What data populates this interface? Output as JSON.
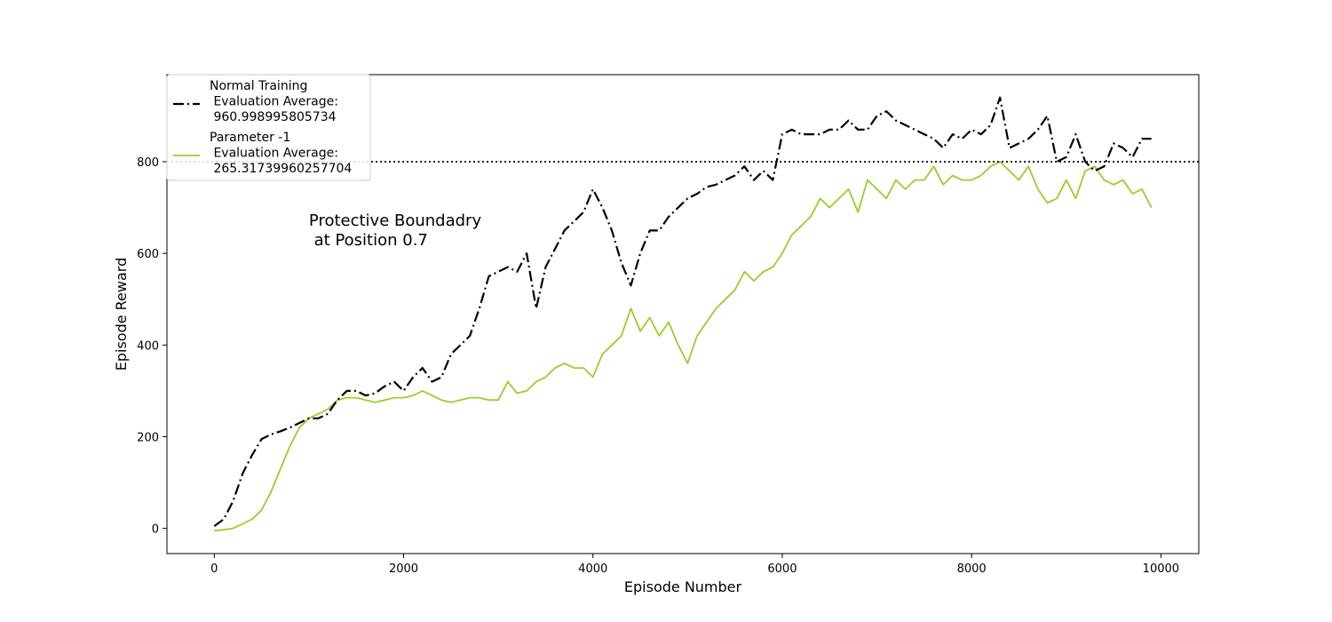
{
  "chart_data": {
    "type": "line",
    "xlabel": "Episode Number",
    "ylabel": "Episode Reward",
    "xlim": [
      -500,
      10400
    ],
    "ylim": [
      -55,
      990
    ],
    "xticks": [
      0,
      2000,
      4000,
      6000,
      8000,
      10000
    ],
    "yticks": [
      0,
      200,
      400,
      600,
      800
    ],
    "grid": false,
    "legend_position": "top-left",
    "reference_line": {
      "y": 800,
      "style": "dotted",
      "color": "#000000"
    },
    "annotation": {
      "lines": [
        "Protective Boundadry",
        " at Position 0.7"
      ],
      "x": 1000,
      "y": 660
    },
    "series": [
      {
        "name": "Normal Training\n Evaluation Average:\n 960.998995805734",
        "legend_lines": [
          "Normal Training",
          " Evaluation Average:",
          " 960.998995805734"
        ],
        "color": "#000000",
        "style": "dashdot",
        "x": [
          0,
          100,
          200,
          300,
          400,
          500,
          600,
          700,
          800,
          900,
          1000,
          1100,
          1200,
          1300,
          1400,
          1500,
          1600,
          1700,
          1800,
          1900,
          2000,
          2100,
          2200,
          2300,
          2400,
          2500,
          2600,
          2700,
          2800,
          2900,
          3000,
          3100,
          3200,
          3300,
          3400,
          3500,
          3600,
          3700,
          3800,
          3900,
          4000,
          4100,
          4200,
          4300,
          4400,
          4500,
          4600,
          4700,
          4800,
          4900,
          5000,
          5100,
          5200,
          5300,
          5400,
          5500,
          5600,
          5700,
          5800,
          5900,
          6000,
          6100,
          6200,
          6300,
          6400,
          6500,
          6600,
          6700,
          6800,
          6900,
          7000,
          7100,
          7200,
          7300,
          7400,
          7500,
          7600,
          7700,
          7800,
          7900,
          8000,
          8100,
          8200,
          8300,
          8400,
          8500,
          8600,
          8700,
          8800,
          8900,
          9000,
          9100,
          9200,
          9300,
          9400,
          9500,
          9600,
          9700,
          9800,
          9900
        ],
        "y": [
          5,
          20,
          60,
          120,
          160,
          195,
          205,
          212,
          220,
          230,
          240,
          240,
          250,
          280,
          300,
          300,
          290,
          295,
          310,
          320,
          300,
          330,
          350,
          320,
          330,
          380,
          400,
          420,
          480,
          550,
          560,
          570,
          560,
          600,
          480,
          570,
          610,
          650,
          670,
          690,
          740,
          700,
          650,
          580,
          530,
          600,
          650,
          650,
          680,
          700,
          720,
          730,
          745,
          750,
          760,
          770,
          790,
          760,
          780,
          760,
          860,
          870,
          860,
          860,
          860,
          870,
          870,
          890,
          870,
          870,
          900,
          910,
          890,
          880,
          870,
          860,
          850,
          830,
          860,
          850,
          870,
          860,
          880,
          940,
          830,
          840,
          850,
          870,
          900,
          800,
          810,
          860,
          800,
          780,
          790,
          840,
          830,
          810,
          850,
          850
        ]
      },
      {
        "name": "Parameter -1\n Evaluation Average:\n 265.31739960257704",
        "legend_lines": [
          "Parameter -1",
          " Evaluation Average:",
          " 265.31739960257704"
        ],
        "color": "#9acd32",
        "style": "solid",
        "x": [
          0,
          100,
          200,
          300,
          400,
          500,
          600,
          700,
          800,
          900,
          1000,
          1100,
          1200,
          1300,
          1400,
          1500,
          1600,
          1700,
          1800,
          1900,
          2000,
          2100,
          2200,
          2300,
          2400,
          2500,
          2600,
          2700,
          2800,
          2900,
          3000,
          3100,
          3200,
          3300,
          3400,
          3500,
          3600,
          3700,
          3800,
          3900,
          4000,
          4100,
          4200,
          4300,
          4400,
          4500,
          4600,
          4700,
          4800,
          4900,
          5000,
          5100,
          5200,
          5300,
          5400,
          5500,
          5600,
          5700,
          5800,
          5900,
          6000,
          6100,
          6200,
          6300,
          6400,
          6500,
          6600,
          6700,
          6800,
          6900,
          7000,
          7100,
          7200,
          7300,
          7400,
          7500,
          7600,
          7700,
          7800,
          7900,
          8000,
          8100,
          8200,
          8300,
          8400,
          8500,
          8600,
          8700,
          8800,
          8900,
          9000,
          9100,
          9200,
          9300,
          9400,
          9500,
          9600,
          9700,
          9800,
          9900
        ],
        "y": [
          -5,
          -3,
          0,
          10,
          20,
          40,
          80,
          130,
          180,
          220,
          240,
          250,
          260,
          280,
          285,
          285,
          280,
          275,
          280,
          285,
          285,
          290,
          300,
          290,
          280,
          275,
          280,
          285,
          285,
          280,
          280,
          320,
          295,
          300,
          320,
          330,
          350,
          360,
          350,
          350,
          330,
          380,
          400,
          420,
          480,
          430,
          460,
          420,
          450,
          400,
          360,
          420,
          450,
          480,
          500,
          520,
          560,
          540,
          560,
          570,
          600,
          640,
          660,
          680,
          720,
          700,
          720,
          740,
          690,
          760,
          740,
          720,
          760,
          740,
          760,
          760,
          790,
          750,
          770,
          760,
          760,
          770,
          790,
          800,
          780,
          760,
          790,
          740,
          710,
          720,
          760,
          720,
          780,
          790,
          760,
          750,
          760,
          730,
          740,
          700
        ]
      }
    ]
  }
}
